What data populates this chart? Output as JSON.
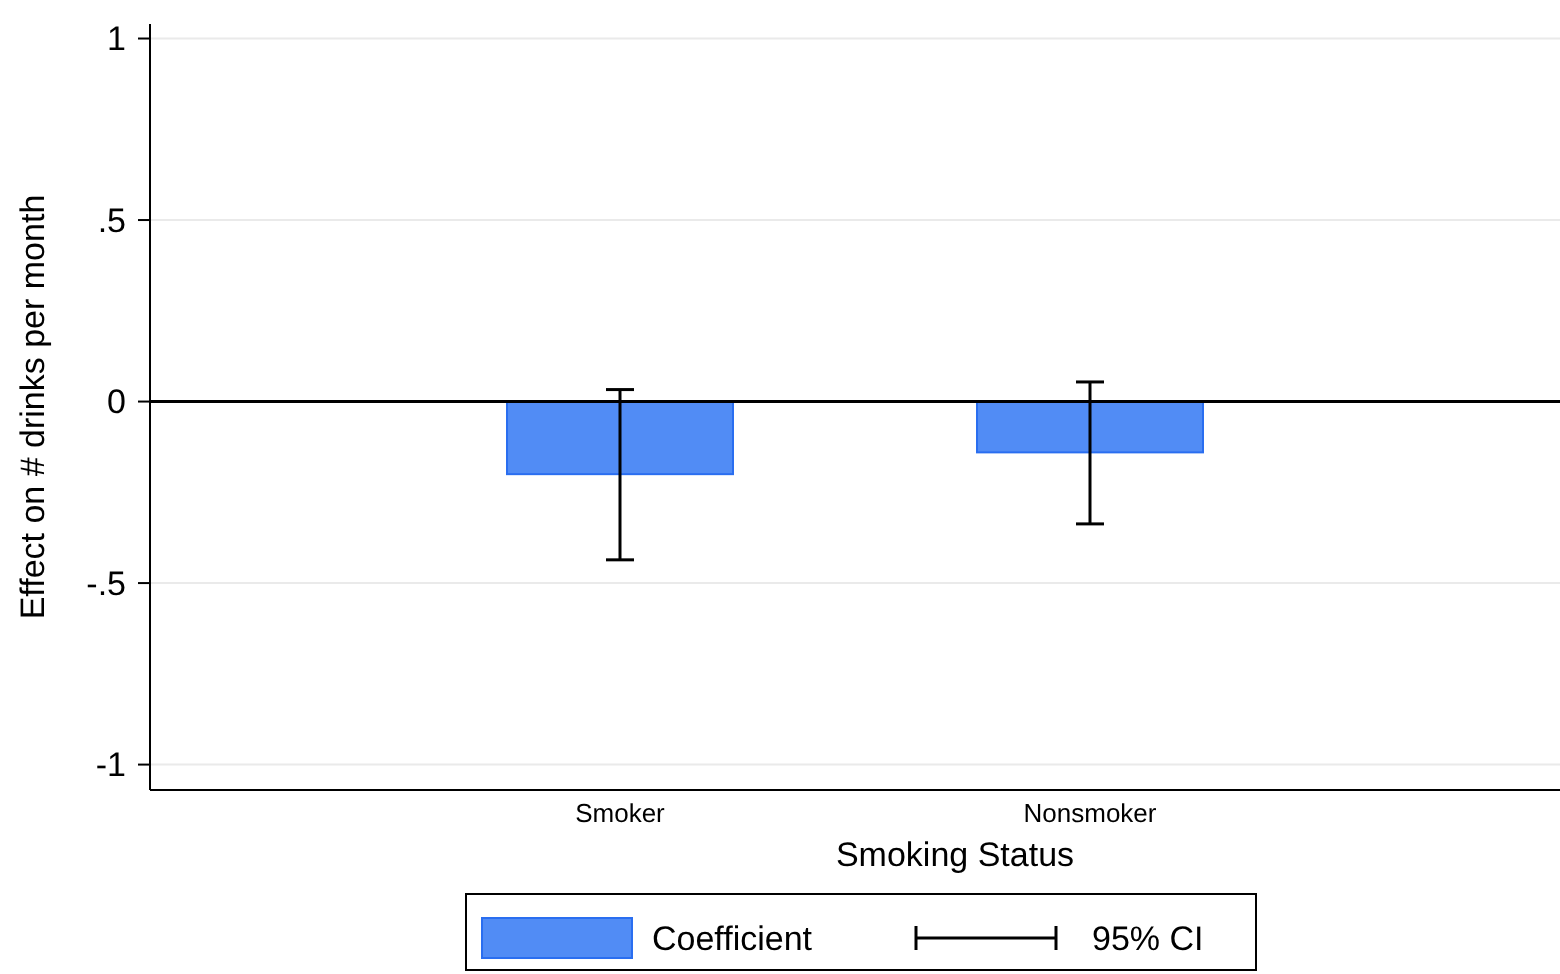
{
  "chart_data": {
    "type": "bar",
    "xlabel": "Smoking Status",
    "ylabel": "Effect on # drinks per month",
    "categories": [
      "Smoker",
      "Nonsmoker"
    ],
    "series": [
      {
        "name": "Coefficient",
        "color": "#518cf5",
        "values": [
          -0.2,
          -0.14
        ],
        "errors": [
          [
            -0.436,
            0.033
          ],
          [
            -0.337,
            0.054
          ]
        ]
      }
    ],
    "ylim": [
      -1.07,
      1.04
    ],
    "yticks": [
      {
        "value": -1,
        "label": "-1"
      },
      {
        "value": -0.5,
        "label": "-.5"
      },
      0,
      {
        "value": 0.5,
        "label": ".5"
      },
      1
    ],
    "grid": "y",
    "legend": "bottom",
    "ref_lines": [
      {
        "axis": "y",
        "value": 0,
        "color": "#000000"
      }
    ],
    "annotations": [
      "95% CI"
    ]
  }
}
